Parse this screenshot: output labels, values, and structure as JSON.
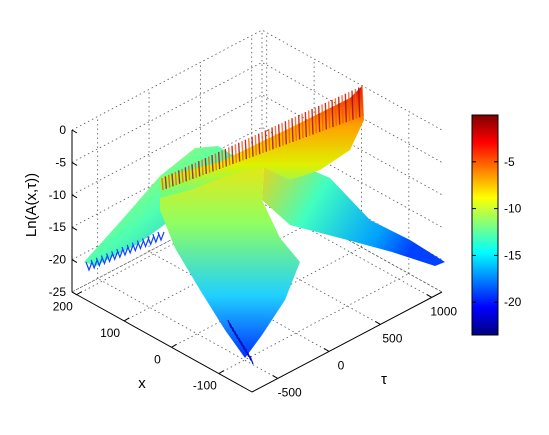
{
  "chart_data": {
    "type": "surface",
    "title": "",
    "xlabel": "x",
    "ylabel": "τ",
    "zlabel": "Ln(A(x,τ))",
    "x_ticks": [
      "-100",
      "0",
      "100",
      "200"
    ],
    "tau_ticks": [
      "-500",
      "0",
      "500",
      "1000"
    ],
    "z_ticks": [
      "-25",
      "-20",
      "-15",
      "-10",
      "-5",
      "0"
    ],
    "xlim": [
      -170,
      210
    ],
    "taulim": [
      -750,
      1100
    ],
    "zlim": [
      -25,
      0
    ],
    "colormap": "jet",
    "colorbar": {
      "range": [
        -23.5,
        0
      ],
      "ticks": [
        "-5",
        "-10",
        "-15",
        "-20"
      ],
      "tick_values": [
        -5,
        -10,
        -15,
        -20
      ]
    },
    "grid": true,
    "surface_description_points": [
      {
        "x": 210,
        "tau": -750,
        "z": -20
      },
      {
        "x": 100,
        "tau": -300,
        "z": -7
      },
      {
        "x": 55,
        "tau": 0,
        "z": -3
      },
      {
        "x": 40,
        "tau": 700,
        "z": -2
      },
      {
        "x": -160,
        "tau": -600,
        "z": -23
      },
      {
        "x": -140,
        "tau": 1100,
        "z": -21
      }
    ]
  }
}
